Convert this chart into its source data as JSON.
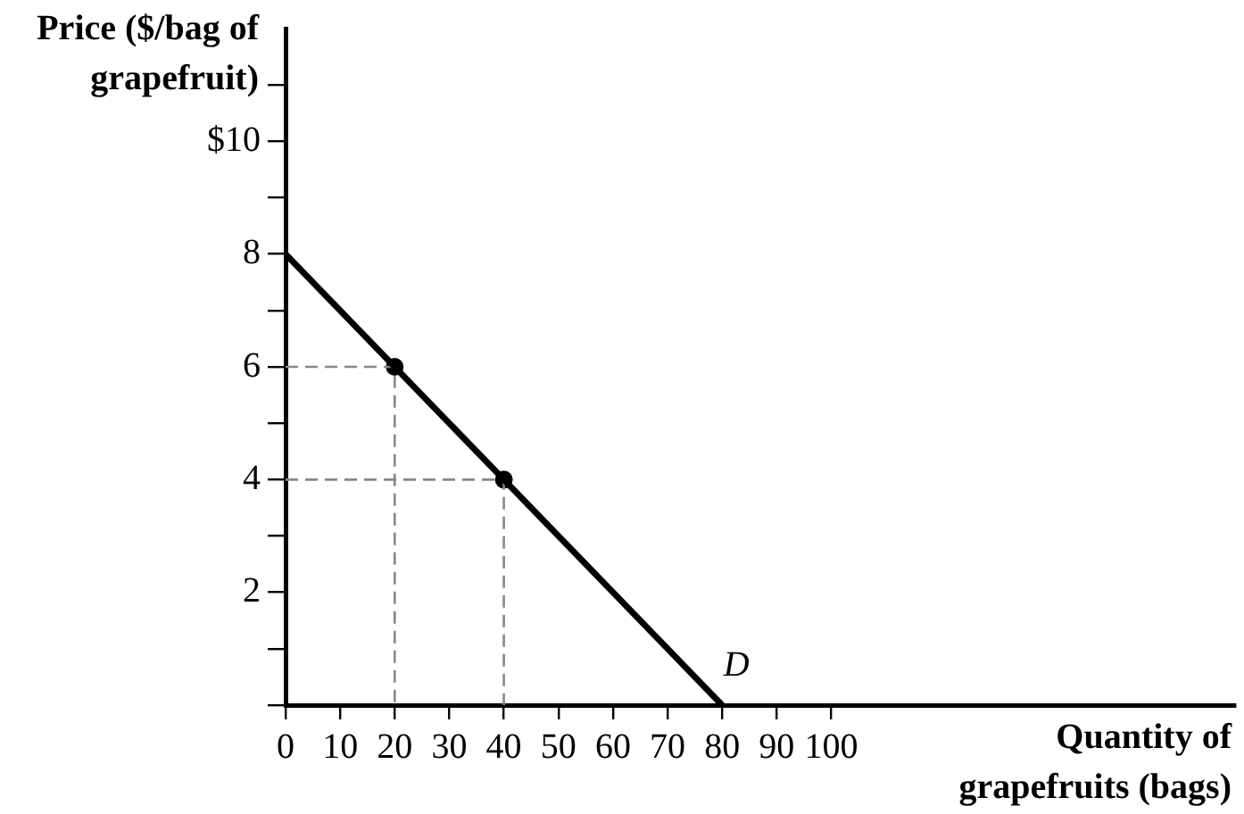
{
  "chart_data": {
    "type": "line",
    "xlabel": "Quantity of grapefruits (bags)",
    "ylabel": "Price ($/bag of grapefruit)",
    "xlim": [
      0,
      174
    ],
    "ylim": [
      0,
      12
    ],
    "xticks": [
      {
        "value": 0,
        "label": "0"
      },
      10,
      20,
      30,
      40,
      50,
      60,
      70,
      80,
      90,
      100
    ],
    "yticks": [
      {
        "value": 0,
        "label": null
      },
      {
        "value": 1,
        "label": null
      },
      2,
      {
        "value": 3,
        "label": null
      },
      4,
      {
        "value": 5,
        "label": null
      },
      6,
      {
        "value": 7,
        "label": null
      },
      8,
      {
        "value": 9,
        "label": null
      },
      {
        "value": 10,
        "label": "$10"
      },
      {
        "value": 11,
        "label": null
      }
    ],
    "grid": false,
    "legend": false,
    "series": [
      {
        "type": "line",
        "color": "#000000",
        "x": [
          0,
          80
        ],
        "values": [
          8,
          0
        ],
        "marker": "none",
        "line_style": "solid"
      },
      {
        "type": "line",
        "color": "#888888",
        "x": [
          0,
          20,
          20
        ],
        "values": [
          6,
          6,
          0
        ],
        "marker": "none",
        "line_style": "dashed"
      },
      {
        "type": "line",
        "color": "#888888",
        "x": [
          0,
          40,
          40
        ],
        "values": [
          4,
          4,
          0
        ],
        "marker": "none",
        "line_style": "dashed"
      },
      {
        "type": "scatter",
        "color": "#000000",
        "x": [
          20,
          40
        ],
        "values": [
          6,
          4
        ],
        "marker": "circle"
      }
    ],
    "annotations": [
      {
        "text": "D",
        "x": 80,
        "y": 0
      }
    ]
  }
}
